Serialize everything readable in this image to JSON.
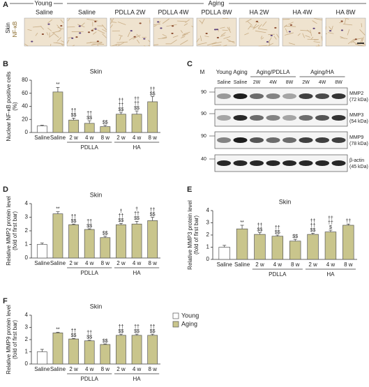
{
  "panel_a": {
    "label": "A",
    "young": "Young",
    "aging": "Aging",
    "row_label": "Skin",
    "stain": "NF-κB",
    "columns": [
      "Saline",
      "Saline",
      "PDLLA 2W",
      "PDLLA 4W",
      "PDLLA 8W",
      "HA 2W",
      "HA 4W",
      "HA 8W"
    ]
  },
  "panel_c": {
    "label": "C",
    "marker": "M",
    "groups": [
      "Young",
      "Aging",
      "Aging/PDLLA",
      "Aging/HA"
    ],
    "lanes": [
      "Saline",
      "Saline",
      "2W",
      "4W",
      "8W",
      "2W",
      "4W",
      "8W"
    ],
    "rows": [
      {
        "marker": "90",
        "name": "MMP2",
        "size": "(72 kDa)"
      },
      {
        "marker": "90",
        "name": "MMP3",
        "size": "(54 kDa)"
      },
      {
        "marker": "90",
        "name": "MMP9",
        "size": "(78 kDa)"
      },
      {
        "marker": "40",
        "name": "β-actin",
        "size": "(45 kDa)"
      }
    ]
  },
  "chart_data": [
    {
      "type": "bar",
      "panel_label": "B",
      "title": "Skin",
      "ylabel": [
        "Nuclear NF-κB positive cells",
        "(%)"
      ],
      "categories": [
        "Saline",
        "Saline",
        "2 w",
        "4 w",
        "8 w",
        "2 w",
        "4 w",
        "8 w"
      ],
      "groups": [
        "PDLLA",
        "HA"
      ],
      "series": [
        {
          "name": "Young",
          "color": "#ffffff",
          "values": [
            10,
            null,
            null,
            null,
            null,
            null,
            null,
            null
          ],
          "errors": [
            1,
            null,
            null,
            null,
            null,
            null,
            null,
            null
          ]
        },
        {
          "name": "Aging",
          "color": "#c9c58c",
          "values": [
            null,
            62,
            19,
            14,
            9,
            28,
            28,
            47
          ],
          "errors": [
            null,
            7,
            3,
            4,
            2,
            3,
            5,
            8
          ]
        }
      ],
      "annotations": [
        [],
        [
          "**"
        ],
        [
          "††",
          "$$"
        ],
        [
          "††",
          "$$"
        ],
        [
          "$$"
        ],
        [
          "††",
          "††",
          "$$"
        ],
        [
          "††",
          "††",
          "$$"
        ],
        [
          "††",
          "$$"
        ]
      ],
      "ylim": [
        0,
        80
      ],
      "yticks": [
        0,
        20,
        40,
        60,
        80
      ],
      "legend": false
    },
    {
      "type": "bar",
      "panel_label": "D",
      "title": "Skin",
      "ylabel": [
        "Relative MMP2 protein level",
        "(fold of first bar)"
      ],
      "categories": [
        "Saline",
        "Saline",
        "2 w",
        "4 w",
        "8 w",
        "2 w",
        "4 w",
        "8 w"
      ],
      "groups": [
        "PDLLA",
        "HA"
      ],
      "series": [
        {
          "name": "Young",
          "color": "#ffffff",
          "values": [
            1.0,
            null,
            null,
            null,
            null,
            null,
            null,
            null
          ],
          "errors": [
            0.1,
            null,
            null,
            null,
            null,
            null,
            null,
            null
          ]
        },
        {
          "name": "Aging",
          "color": "#c9c58c",
          "values": [
            null,
            3.25,
            2.45,
            2.1,
            1.5,
            2.45,
            2.5,
            2.75
          ],
          "errors": [
            null,
            0.15,
            0.05,
            0.05,
            0.1,
            0.1,
            0.2,
            0.25
          ]
        }
      ],
      "annotations": [
        [],
        [
          "**"
        ],
        [
          "††",
          "$$"
        ],
        [
          "††",
          "$$"
        ],
        [
          "$$"
        ],
        [
          "†",
          "††",
          "$$"
        ],
        [
          "†",
          "††",
          "$$"
        ],
        [
          "††",
          "$$"
        ]
      ],
      "ylim": [
        0,
        4
      ],
      "yticks": [
        0,
        1,
        2,
        3,
        4
      ],
      "legend": false
    },
    {
      "type": "bar",
      "panel_label": "E",
      "title": "Skin",
      "ylabel": [
        "Relative MMP3 protein level",
        "(fold of first bar)"
      ],
      "categories": [
        "Saline",
        "Saline",
        "2 w",
        "4 w",
        "8 w",
        "2 w",
        "4 w",
        "8 w"
      ],
      "groups": [
        "PDLLA",
        "HA"
      ],
      "series": [
        {
          "name": "Young",
          "color": "#ffffff",
          "values": [
            1.0,
            null,
            null,
            null,
            null,
            null,
            null,
            null
          ],
          "errors": [
            0.15,
            null,
            null,
            null,
            null,
            null,
            null,
            null
          ]
        },
        {
          "name": "Aging",
          "color": "#c9c58c",
          "values": [
            null,
            2.5,
            2.05,
            1.9,
            1.5,
            2.05,
            2.25,
            2.8
          ],
          "errors": [
            null,
            0.3,
            0.15,
            0.1,
            0.15,
            0.1,
            0.15,
            0.1
          ]
        }
      ],
      "annotations": [
        [],
        [
          "**"
        ],
        [
          "††",
          "$$"
        ],
        [
          "††",
          "$$"
        ],
        [
          "$$"
        ],
        [
          "††",
          "††",
          "$$"
        ],
        [
          "††",
          "††",
          "$"
        ],
        [
          "††"
        ]
      ],
      "ylim": [
        0,
        4
      ],
      "yticks": [
        0,
        1,
        2,
        3,
        4
      ],
      "legend": false
    },
    {
      "type": "bar",
      "panel_label": "F",
      "title": "Skin",
      "ylabel": [
        "Relative MMP9 protein level",
        "(fold of first bar)"
      ],
      "categories": [
        "Saline",
        "Saline",
        "2 w",
        "4 w",
        "8 w",
        "2 w",
        "4 w",
        "8 w"
      ],
      "groups": [
        "PDLLA",
        "HA"
      ],
      "series": [
        {
          "name": "Young",
          "color": "#ffffff",
          "values": [
            1.0,
            null,
            null,
            null,
            null,
            null,
            null,
            null
          ],
          "errors": [
            0.2,
            null,
            null,
            null,
            null,
            null,
            null,
            null
          ]
        },
        {
          "name": "Aging",
          "color": "#c9c58c",
          "values": [
            null,
            2.55,
            2.05,
            1.9,
            1.6,
            2.35,
            2.35,
            2.35
          ],
          "errors": [
            null,
            0.05,
            0.05,
            0.05,
            0.05,
            0.1,
            0.1,
            0.1
          ]
        }
      ],
      "annotations": [
        [],
        [
          "**"
        ],
        [
          "††",
          "$$"
        ],
        [
          "††",
          "$$"
        ],
        [
          "$$"
        ],
        [
          "††",
          "$$"
        ],
        [
          "††",
          "$$"
        ],
        [
          "††",
          "$$"
        ]
      ],
      "ylim": [
        0,
        4
      ],
      "yticks": [
        0,
        1,
        2,
        3,
        4
      ],
      "legend": "right"
    }
  ]
}
